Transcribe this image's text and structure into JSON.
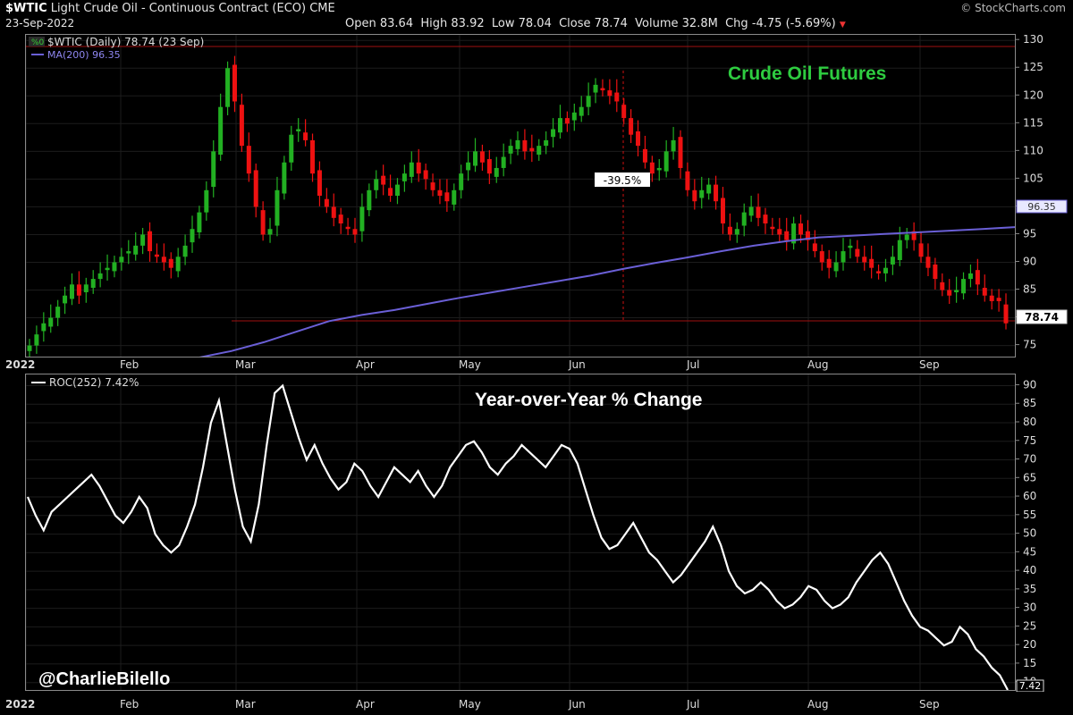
{
  "header": {
    "symbol": "$WTIC",
    "description": "Light Crude Oil - Continuous Contract (ECO) CME",
    "date": "23-Sep-2022",
    "watermark": "© StockCharts.com",
    "open_label": "Open",
    "open": "83.64",
    "high_label": "High",
    "high": "83.92",
    "low_label": "Low",
    "low": "78.04",
    "close_label": "Close",
    "close": "78.74",
    "volume_label": "Volume",
    "volume": "32.8M",
    "chg_label": "Chg",
    "chg": "-4.75 (-5.69%)"
  },
  "price_panel": {
    "legend_main": "$WTIC (Daily) 78.74 (23 Sep)",
    "legend_ma": "MA(200) 96.35",
    "title": "Crude Oil Futures",
    "drawdown_label": "-39.5%",
    "ma_tag": "96.35",
    "close_tag": "78.74"
  },
  "roc_panel": {
    "legend": "ROC(252) 7.42%",
    "title": "Year-over-Year % Change",
    "end_tag": "7.42",
    "credit": "@CharlieBilello"
  },
  "colors": {
    "up": "#22b022",
    "down": "#ee1111",
    "ma": "#6a5fd6",
    "roc": "#ffffff",
    "title_green": "#2ecc40",
    "ref_line": "#cc1111"
  },
  "chart_data": [
    {
      "type": "line",
      "title": "Crude Oil Futures",
      "note": "candlestick price panel; values are approximate daily closes",
      "x_ticks": [
        "2022",
        "Feb",
        "Mar",
        "Apr",
        "May",
        "Jun",
        "Jul",
        "Aug",
        "Sep"
      ],
      "y_ticks": [
        75,
        80,
        85,
        90,
        95,
        100,
        105,
        110,
        115,
        120,
        125,
        130
      ],
      "ylim": [
        73,
        131
      ],
      "series": [
        {
          "name": "$WTIC",
          "values": [
            75,
            77,
            79,
            80,
            82,
            84,
            86,
            84,
            86,
            87,
            88,
            89,
            90,
            91,
            92,
            93,
            95,
            92,
            91,
            90,
            89,
            91,
            93,
            96,
            99,
            103,
            110,
            118,
            125,
            119,
            111,
            106,
            100,
            95,
            96,
            103,
            108,
            113,
            114,
            112,
            106,
            102,
            100,
            98,
            97,
            96,
            95,
            100,
            103,
            105,
            104,
            102,
            104,
            106,
            108,
            106,
            105,
            103,
            102,
            101,
            103,
            106,
            108,
            110,
            108,
            106,
            107,
            109,
            111,
            112,
            110,
            110,
            111,
            112,
            114,
            116,
            115,
            117,
            118,
            120,
            122,
            121,
            120,
            119,
            116,
            113,
            111,
            108,
            106,
            107,
            110,
            112,
            107,
            103,
            101,
            103,
            104,
            101,
            97,
            95,
            96,
            99,
            100,
            98,
            97,
            96,
            95,
            94,
            97,
            95,
            94,
            92,
            90,
            89,
            90,
            92,
            93,
            91,
            90,
            89,
            88,
            89,
            91,
            94,
            95,
            94,
            91,
            89,
            87,
            85,
            84,
            85,
            87,
            88,
            86,
            84,
            83,
            83,
            79
          ]
        },
        {
          "name": "MA(200)",
          "values": [
            71,
            71.8,
            72.8,
            74,
            75.6,
            77.5,
            79.4,
            80.5,
            81.4,
            82.5,
            83.6,
            84.6,
            85.6,
            86.6,
            87.6,
            88.8,
            89.9,
            90.9,
            92,
            93,
            93.8,
            94.5,
            94.8,
            95.1,
            95.4,
            95.7,
            96,
            96.35
          ]
        }
      ]
    },
    {
      "type": "line",
      "title": "Year-over-Year % Change",
      "x_ticks": [
        "2022",
        "Feb",
        "Mar",
        "Apr",
        "May",
        "Jun",
        "Jul",
        "Aug",
        "Sep"
      ],
      "y_ticks": [
        10,
        15,
        20,
        25,
        30,
        35,
        40,
        45,
        50,
        55,
        60,
        65,
        70,
        75,
        80,
        85,
        90
      ],
      "ylim": [
        8,
        93
      ],
      "series": [
        {
          "name": "ROC(252)",
          "values": [
            60,
            55,
            51,
            56,
            58,
            60,
            62,
            64,
            66,
            63,
            59,
            55,
            53,
            56,
            60,
            57,
            50,
            47,
            45,
            47,
            52,
            58,
            68,
            80,
            86,
            74,
            62,
            52,
            48,
            58,
            74,
            88,
            90,
            83,
            76,
            70,
            74,
            69,
            65,
            62,
            64,
            69,
            67,
            63,
            60,
            64,
            68,
            66,
            64,
            67,
            63,
            60,
            63,
            68,
            71,
            74,
            75,
            72,
            68,
            66,
            69,
            71,
            74,
            72,
            70,
            68,
            71,
            74,
            73,
            69,
            62,
            55,
            49,
            46,
            47,
            50,
            53,
            49,
            45,
            43,
            40,
            37,
            39,
            42,
            45,
            48,
            52,
            47,
            40,
            36,
            34,
            35,
            37,
            35,
            32,
            30,
            31,
            33,
            36,
            35,
            32,
            30,
            31,
            33,
            37,
            40,
            43,
            45,
            42,
            37,
            32,
            28,
            25,
            24,
            22,
            20,
            21,
            25,
            23,
            19,
            17,
            14,
            12,
            8
          ]
        }
      ]
    }
  ]
}
